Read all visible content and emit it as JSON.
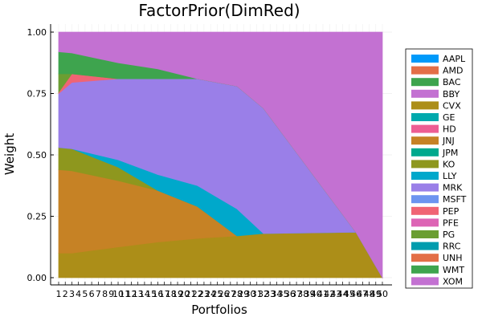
{
  "chart_data": {
    "type": "area",
    "title": "FactorPrior(DimRed)",
    "xlabel": "Portfolios",
    "ylabel": "Weight",
    "xlim": [
      1,
      50
    ],
    "ylim": [
      0,
      1
    ],
    "yticks": [
      0,
      0.25,
      0.5,
      0.75,
      1
    ],
    "ytick_labels": [
      "0.00",
      "0.25",
      "0.50",
      "0.75",
      "1.00"
    ],
    "xticks": [
      1,
      2,
      3,
      4,
      5,
      6,
      7,
      8,
      9,
      10,
      11,
      12,
      13,
      14,
      15,
      16,
      17,
      18,
      19,
      20,
      21,
      22,
      23,
      24,
      25,
      26,
      27,
      28,
      29,
      30,
      31,
      32,
      33,
      34,
      35,
      36,
      37,
      38,
      39,
      40,
      41,
      42,
      43,
      44,
      45,
      46,
      47,
      48,
      49,
      50
    ],
    "grid": true,
    "legend_position": "right",
    "x": [
      1,
      3,
      10,
      16,
      22,
      28,
      32,
      46,
      50
    ],
    "series": [
      {
        "name": "AAPL",
        "color": "#009AFA",
        "values": [
          0,
          0,
          0,
          0,
          0,
          0,
          0,
          0,
          0
        ]
      },
      {
        "name": "AMD",
        "color": "#E36F47",
        "values": [
          0,
          0,
          0,
          0,
          0,
          0,
          0,
          0,
          0
        ]
      },
      {
        "name": "BAC",
        "color": "#3EA44E",
        "values": [
          0,
          0,
          0,
          0,
          0,
          0,
          0,
          0,
          0
        ]
      },
      {
        "name": "BBY",
        "color": "#C371D2",
        "values": [
          0,
          0,
          0,
          0,
          0,
          0,
          0,
          0,
          0
        ]
      },
      {
        "name": "CVX",
        "color": "#AC8E18",
        "values": [
          0.1,
          0.1,
          0.125,
          0.145,
          0.16,
          0.17,
          0.18,
          0.185,
          0
        ]
      },
      {
        "name": "GE",
        "color": "#00A9AD",
        "values": [
          0,
          0,
          0,
          0,
          0,
          0,
          0,
          0,
          0
        ]
      },
      {
        "name": "HD",
        "color": "#ED5E93",
        "values": [
          0,
          0,
          0,
          0,
          0,
          0,
          0,
          0,
          0
        ]
      },
      {
        "name": "JNJ",
        "color": "#C68225",
        "values": [
          0.34,
          0.335,
          0.27,
          0.21,
          0.13,
          0,
          0,
          0,
          0
        ]
      },
      {
        "name": "JPM",
        "color": "#00A98D",
        "values": [
          0,
          0,
          0,
          0,
          0,
          0,
          0,
          0,
          0
        ]
      },
      {
        "name": "KO",
        "color": "#8E971E",
        "values": [
          0.09,
          0.09,
          0.055,
          0,
          0,
          0,
          0,
          0,
          0
        ]
      },
      {
        "name": "LLY",
        "color": "#00A8CB",
        "values": [
          0,
          0,
          0.03,
          0.065,
          0.085,
          0.11,
          0,
          0,
          0
        ]
      },
      {
        "name": "MRK",
        "color": "#9A7FE8",
        "values": [
          0.22,
          0.27,
          0.33,
          0.39,
          0.435,
          0.5,
          0.51,
          0,
          0
        ]
      },
      {
        "name": "MSFT",
        "color": "#6C94F0",
        "values": [
          0,
          0,
          0,
          0,
          0,
          0,
          0,
          0,
          0
        ]
      },
      {
        "name": "PEP",
        "color": "#F06474",
        "values": [
          0.005,
          0.035,
          0,
          0,
          0,
          0,
          0,
          0,
          0
        ]
      },
      {
        "name": "PFE",
        "color": "#DD64B5",
        "values": [
          0,
          0,
          0,
          0,
          0,
          0,
          0,
          0,
          0
        ]
      },
      {
        "name": "PG",
        "color": "#6B9E32",
        "values": [
          0.075,
          0,
          0,
          0,
          0,
          0,
          0,
          0,
          0
        ]
      },
      {
        "name": "RRC",
        "color": "#009CAE",
        "values": [
          0,
          0,
          0,
          0,
          0,
          0,
          0,
          0,
          0
        ]
      },
      {
        "name": "UNH",
        "color": "#E36F47",
        "values": [
          0,
          0,
          0,
          0,
          0,
          0,
          0,
          0,
          0
        ]
      },
      {
        "name": "WMT",
        "color": "#3EA44E",
        "values": [
          0.09,
          0.085,
          0.065,
          0.04,
          0,
          0,
          0,
          0,
          0
        ]
      },
      {
        "name": "XOM",
        "color": "#C371D2",
        "values": [
          0.08,
          0.085,
          0.125,
          0.15,
          0.19,
          0.22,
          0.31,
          0.815,
          1.0
        ]
      }
    ]
  }
}
